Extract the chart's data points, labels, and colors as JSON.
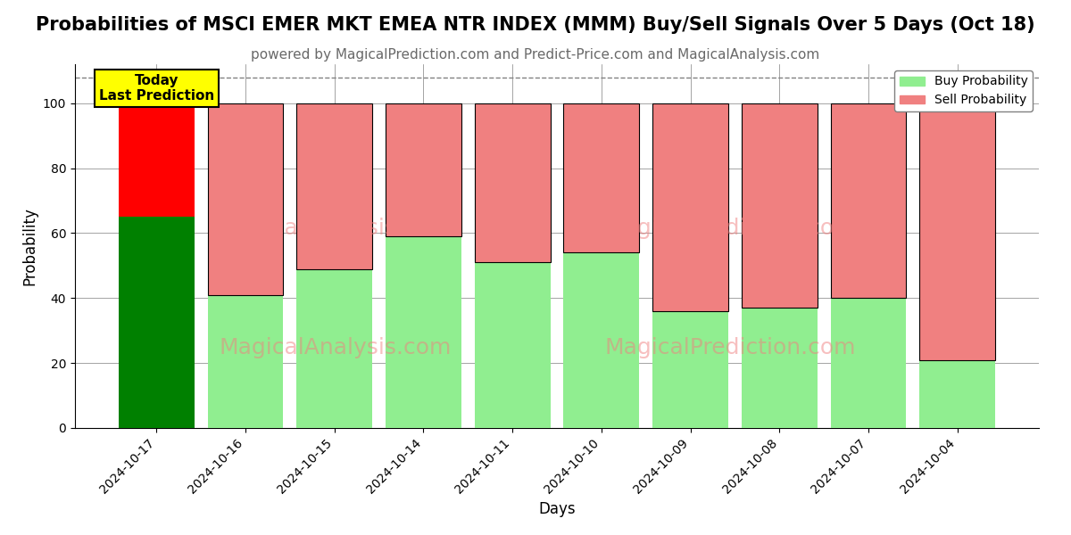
{
  "title": "Probabilities of MSCI EMER MKT EMEA NTR INDEX (MMM) Buy/Sell Signals Over 5 Days (Oct 18)",
  "subtitle": "powered by MagicalPrediction.com and Predict-Price.com and MagicalAnalysis.com",
  "xlabel": "Days",
  "ylabel": "Probability",
  "categories": [
    "2024-10-17",
    "2024-10-16",
    "2024-10-15",
    "2024-10-14",
    "2024-10-11",
    "2024-10-10",
    "2024-10-09",
    "2024-10-08",
    "2024-10-07",
    "2024-10-04"
  ],
  "buy_values": [
    65,
    41,
    49,
    59,
    51,
    54,
    36,
    37,
    40,
    21
  ],
  "sell_values": [
    35,
    59,
    51,
    41,
    49,
    46,
    64,
    63,
    60,
    79
  ],
  "today_buy_color": "#008000",
  "today_sell_color": "#FF0000",
  "buy_color": "#90EE90",
  "sell_color": "#F08080",
  "today_annotation": "Today\nLast Prediction",
  "annotation_bg_color": "#FFFF00",
  "ylim": [
    0,
    112
  ],
  "dashed_line_y": 108,
  "legend_buy_label": "Buy Probability",
  "legend_sell_label": "Sell Probability",
  "title_fontsize": 15,
  "subtitle_fontsize": 11,
  "figsize": [
    12,
    6
  ],
  "dpi": 100
}
